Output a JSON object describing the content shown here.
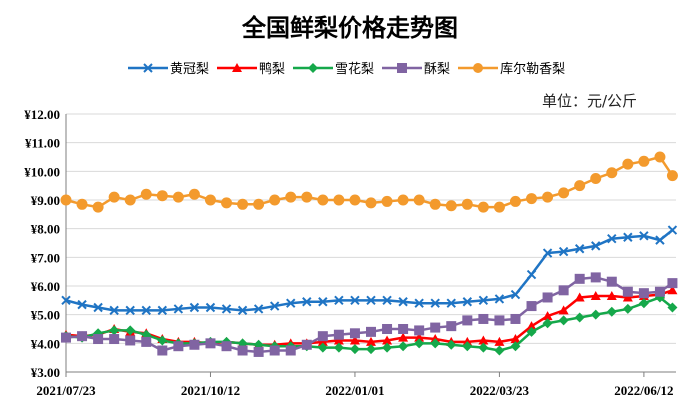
{
  "chart_data": {
    "type": "line",
    "title": "全国鲜梨价格走势图",
    "unit_label": "单位：元/公斤",
    "x_tick_labels": [
      "2021/07/23",
      "2021/10/12",
      "2022/01/01",
      "2022/03/23",
      "2022/06/12"
    ],
    "x_tick_days": [
      0,
      81,
      162,
      243,
      324
    ],
    "x_range_days": [
      0,
      342
    ],
    "ylim": [
      3,
      12
    ],
    "y_ticks": [
      3,
      4,
      5,
      6,
      7,
      8,
      9,
      10,
      11,
      12
    ],
    "y_tick_labels": [
      "¥3.00",
      "¥4.00",
      "¥5.00",
      "¥6.00",
      "¥7.00",
      "¥8.00",
      "¥9.00",
      "¥10.00",
      "¥11.00",
      "¥12.00"
    ],
    "x_days": [
      0,
      9,
      18,
      27,
      36,
      45,
      54,
      63,
      72,
      81,
      90,
      99,
      108,
      117,
      126,
      135,
      144,
      153,
      162,
      171,
      180,
      189,
      198,
      207,
      216,
      225,
      234,
      243,
      252,
      261,
      270,
      279,
      288,
      297,
      306,
      315,
      324,
      333,
      340
    ],
    "series": [
      {
        "name": "黄冠梨",
        "color": "#1f74c4",
        "marker": "x",
        "values": [
          5.5,
          5.35,
          5.25,
          5.15,
          5.15,
          5.15,
          5.15,
          5.2,
          5.25,
          5.25,
          5.2,
          5.15,
          5.2,
          5.3,
          5.4,
          5.45,
          5.45,
          5.5,
          5.5,
          5.5,
          5.5,
          5.45,
          5.4,
          5.4,
          5.4,
          5.45,
          5.5,
          5.55,
          5.7,
          6.4,
          7.15,
          7.2,
          7.3,
          7.4,
          7.65,
          7.7,
          7.75,
          7.6,
          7.95
        ]
      },
      {
        "name": "鸭梨",
        "color": "#ff0000",
        "marker": "triangle",
        "values": [
          4.3,
          4.25,
          4.3,
          4.5,
          4.4,
          4.35,
          4.15,
          4.05,
          4.05,
          4.0,
          4.05,
          4.0,
          3.95,
          3.95,
          4.0,
          4.0,
          4.05,
          4.1,
          4.1,
          4.05,
          4.1,
          4.2,
          4.2,
          4.15,
          4.05,
          4.05,
          4.1,
          4.05,
          4.15,
          4.6,
          4.95,
          5.15,
          5.6,
          5.65,
          5.65,
          5.6,
          5.65,
          5.7,
          5.85
        ]
      },
      {
        "name": "雪花梨",
        "color": "#15a84a",
        "marker": "diamond",
        "values": [
          4.25,
          4.2,
          4.35,
          4.45,
          4.45,
          4.3,
          4.1,
          4.0,
          4.0,
          4.05,
          4.05,
          4.0,
          3.95,
          3.9,
          3.9,
          3.9,
          3.85,
          3.85,
          3.8,
          3.8,
          3.85,
          3.9,
          4.0,
          4.0,
          3.95,
          3.9,
          3.85,
          3.75,
          3.9,
          4.4,
          4.7,
          4.8,
          4.9,
          5.0,
          5.1,
          5.2,
          5.4,
          5.6,
          5.25
        ]
      },
      {
        "name": "酥梨",
        "color": "#8064a2",
        "marker": "square",
        "values": [
          4.2,
          4.25,
          4.15,
          4.15,
          4.1,
          4.05,
          3.75,
          3.9,
          3.95,
          4.0,
          3.9,
          3.75,
          3.7,
          3.75,
          3.75,
          3.95,
          4.25,
          4.3,
          4.35,
          4.4,
          4.5,
          4.5,
          4.45,
          4.55,
          4.6,
          4.8,
          4.85,
          4.8,
          4.85,
          5.3,
          5.6,
          5.85,
          6.25,
          6.3,
          6.15,
          5.8,
          5.75,
          5.8,
          6.1
        ]
      },
      {
        "name": "库尔勒香梨",
        "color": "#f39a2d",
        "marker": "circle",
        "values": [
          9.0,
          8.85,
          8.75,
          9.1,
          9.0,
          9.2,
          9.15,
          9.1,
          9.2,
          9.0,
          8.9,
          8.85,
          8.85,
          9.0,
          9.1,
          9.1,
          9.0,
          9.0,
          9.0,
          8.9,
          8.95,
          9.0,
          9.0,
          8.85,
          8.8,
          8.85,
          8.75,
          8.75,
          8.95,
          9.05,
          9.1,
          9.25,
          9.5,
          9.75,
          9.95,
          10.25,
          10.35,
          10.5,
          9.85
        ]
      }
    ]
  }
}
